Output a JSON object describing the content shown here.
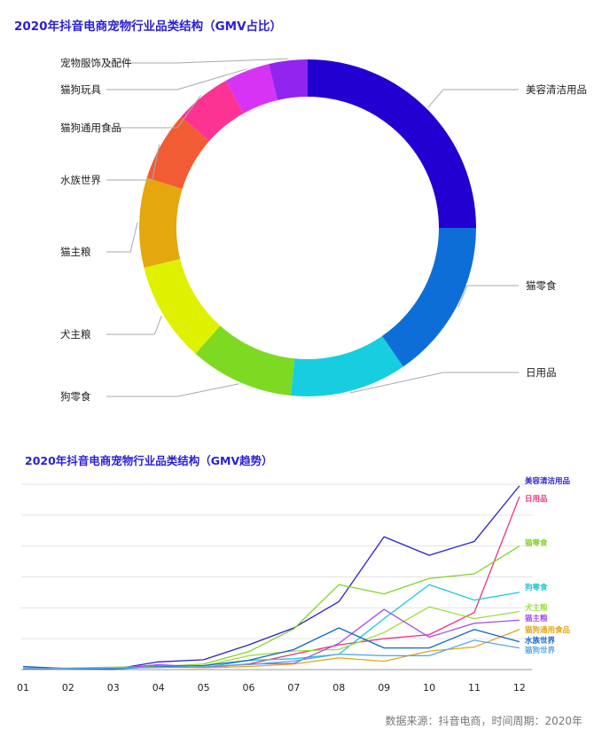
{
  "donut": {
    "title": "2020年抖音电商宠物行业品类结构（GMV占比）",
    "chart_data": {
      "type": "pie",
      "title": "2020年抖音电商宠物行业品类结构（GMV占比）",
      "slices": [
        {
          "name": "美容清洁用品",
          "value": 25.0,
          "color": "#2200d2"
        },
        {
          "name": "猫零食",
          "value": 15.4,
          "color": "#0e6ed8"
        },
        {
          "name": "日用品",
          "value": 11.2,
          "color": "#17cee0"
        },
        {
          "name": "狗零食",
          "value": 10.0,
          "color": "#7ed922"
        },
        {
          "name": "犬主粮",
          "value": 9.6,
          "color": "#dff000"
        },
        {
          "name": "猫主粮",
          "value": 8.6,
          "color": "#e5a70e"
        },
        {
          "name": "水族世界",
          "value": 6.7,
          "color": "#f25c35"
        },
        {
          "name": "猫狗通用食品",
          "value": 5.4,
          "color": "#fd3394"
        },
        {
          "name": "猫狗玩具",
          "value": 4.4,
          "color": "#d633f4"
        },
        {
          "name": "宠物服饰及配件",
          "value": 3.7,
          "color": "#9125ee"
        }
      ]
    }
  },
  "trend": {
    "title": "2020年抖音电商宠物行业品类结构（GMV趋势）",
    "chart_data": {
      "type": "line",
      "title": "2020年抖音电商宠物行业品类结构（GMV趋势）",
      "x": [
        "01",
        "02",
        "03",
        "04",
        "05",
        "06",
        "07",
        "08",
        "09",
        "10",
        "11",
        "12"
      ],
      "ylim": [
        0,
        60
      ],
      "grid": true,
      "series": [
        {
          "name": "美容清洁用品",
          "color": "#2a1fd6",
          "values": [
            0.5,
            0.3,
            0.1,
            2.5,
            3.2,
            8.0,
            13.5,
            22.0,
            43.0,
            37.0,
            41.5,
            59.5
          ]
        },
        {
          "name": "日用品",
          "color": "#f0307d",
          "values": [
            0.2,
            0.2,
            0.4,
            1.4,
            0.6,
            1.8,
            5.0,
            8.0,
            10.0,
            11.3,
            18.5,
            56.0
          ]
        },
        {
          "name": "猫零食",
          "color": "#84d22d",
          "values": [
            0.5,
            0.5,
            0.8,
            1.0,
            1.8,
            5.8,
            13.2,
            27.5,
            24.5,
            29.5,
            31.0,
            40.0
          ]
        },
        {
          "name": "狗零食",
          "color": "#19c8dc",
          "values": [
            0.5,
            0.3,
            0.5,
            1.5,
            0.6,
            3.0,
            3.5,
            5.0,
            16.5,
            27.5,
            22.5,
            25.0
          ]
        },
        {
          "name": "犬主粮",
          "color": "#9ede3a",
          "values": [
            0.4,
            0.3,
            0.6,
            0.9,
            1.2,
            4.5,
            6.0,
            6.5,
            12.0,
            20.3,
            16.5,
            18.8
          ]
        },
        {
          "name": "猫主粮",
          "color": "#a64bf0",
          "values": [
            0.2,
            0.4,
            0.2,
            1.6,
            0.8,
            1.8,
            2.0,
            8.5,
            19.5,
            10.5,
            15.0,
            16.0
          ]
        },
        {
          "name": "猫狗通用食品",
          "color": "#e6a519",
          "values": [
            0.5,
            0.2,
            0.4,
            0.8,
            0.6,
            1.0,
            1.8,
            3.8,
            2.7,
            6.0,
            7.3,
            13.0
          ]
        },
        {
          "name": "水族世界",
          "color": "#1466c8",
          "values": [
            1.0,
            0.3,
            0.2,
            0.9,
            1.3,
            3.0,
            6.5,
            13.5,
            7.0,
            7.0,
            13.0,
            9.0
          ]
        },
        {
          "name": "猫狗世界",
          "color": "#5aa9e6",
          "values": [
            0.3,
            0.4,
            0.5,
            0.7,
            1.0,
            1.6,
            2.8,
            5.0,
            4.5,
            4.5,
            9.5,
            7.0
          ]
        }
      ]
    }
  },
  "source": "数据来源：抖音电商，时间周期：2020年"
}
